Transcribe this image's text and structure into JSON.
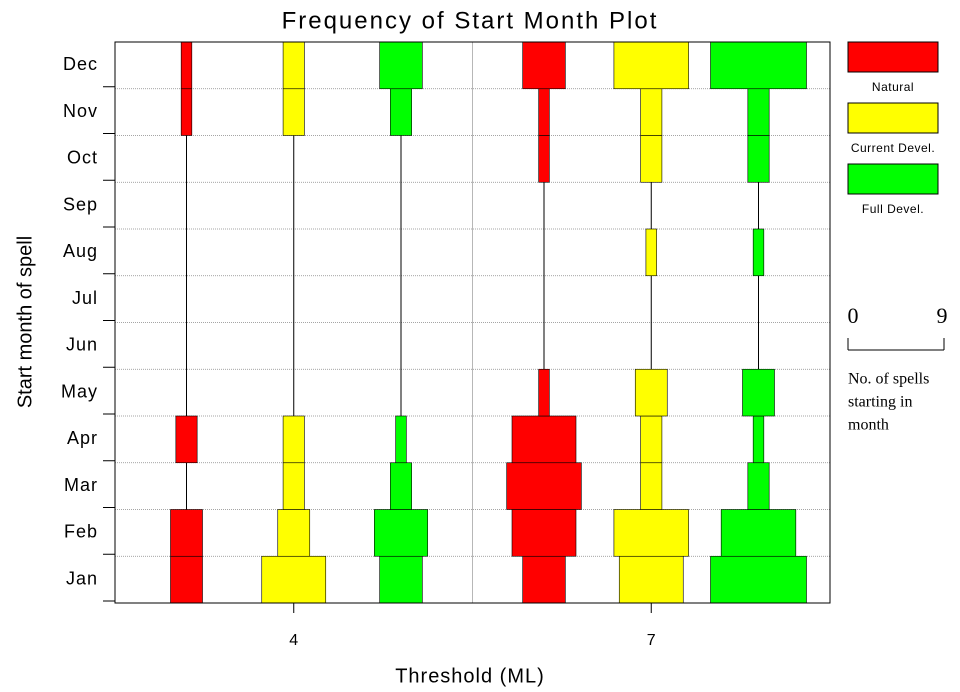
{
  "chart_data": {
    "type": "kite",
    "title": "Frequency of Start Month Plot",
    "x_label": "Threshold (ML)",
    "y_label": "Start month of spell",
    "categories": [
      "Jan",
      "Feb",
      "Mar",
      "Apr",
      "May",
      "Jun",
      "Jul",
      "Aug",
      "Sep",
      "Oct",
      "Nov",
      "Dec"
    ],
    "xlim": [
      2.5,
      8.5
    ],
    "xticks": [
      4,
      7
    ],
    "series": [
      {
        "name": "Natural",
        "color": "#ff0000",
        "values": [
          [
            3,
            3,
            0,
            2,
            0,
            0,
            0,
            0,
            0,
            0,
            1,
            1
          ],
          [
            4,
            6,
            7,
            6,
            1,
            0,
            0,
            0,
            0,
            1,
            1,
            4
          ]
        ]
      },
      {
        "name": "Current Devel.",
        "color": "#ffff00",
        "values": [
          [
            6,
            3,
            2,
            2,
            0,
            0,
            0,
            0,
            0,
            0,
            2,
            2
          ],
          [
            6,
            7,
            2,
            2,
            3,
            0,
            0,
            1,
            0,
            2,
            2,
            7
          ]
        ]
      },
      {
        "name": "Full Devel.",
        "color": "#00ff00",
        "values": [
          [
            4,
            5,
            2,
            1,
            0,
            0,
            0,
            0,
            0,
            0,
            2,
            4
          ],
          [
            9,
            7,
            2,
            1,
            3,
            0,
            0,
            1,
            0,
            2,
            2,
            9
          ]
        ]
      }
    ],
    "scale_ticks": [
      0,
      9
    ],
    "scale_note": [
      "No. of spells",
      "starting in",
      "month"
    ]
  }
}
